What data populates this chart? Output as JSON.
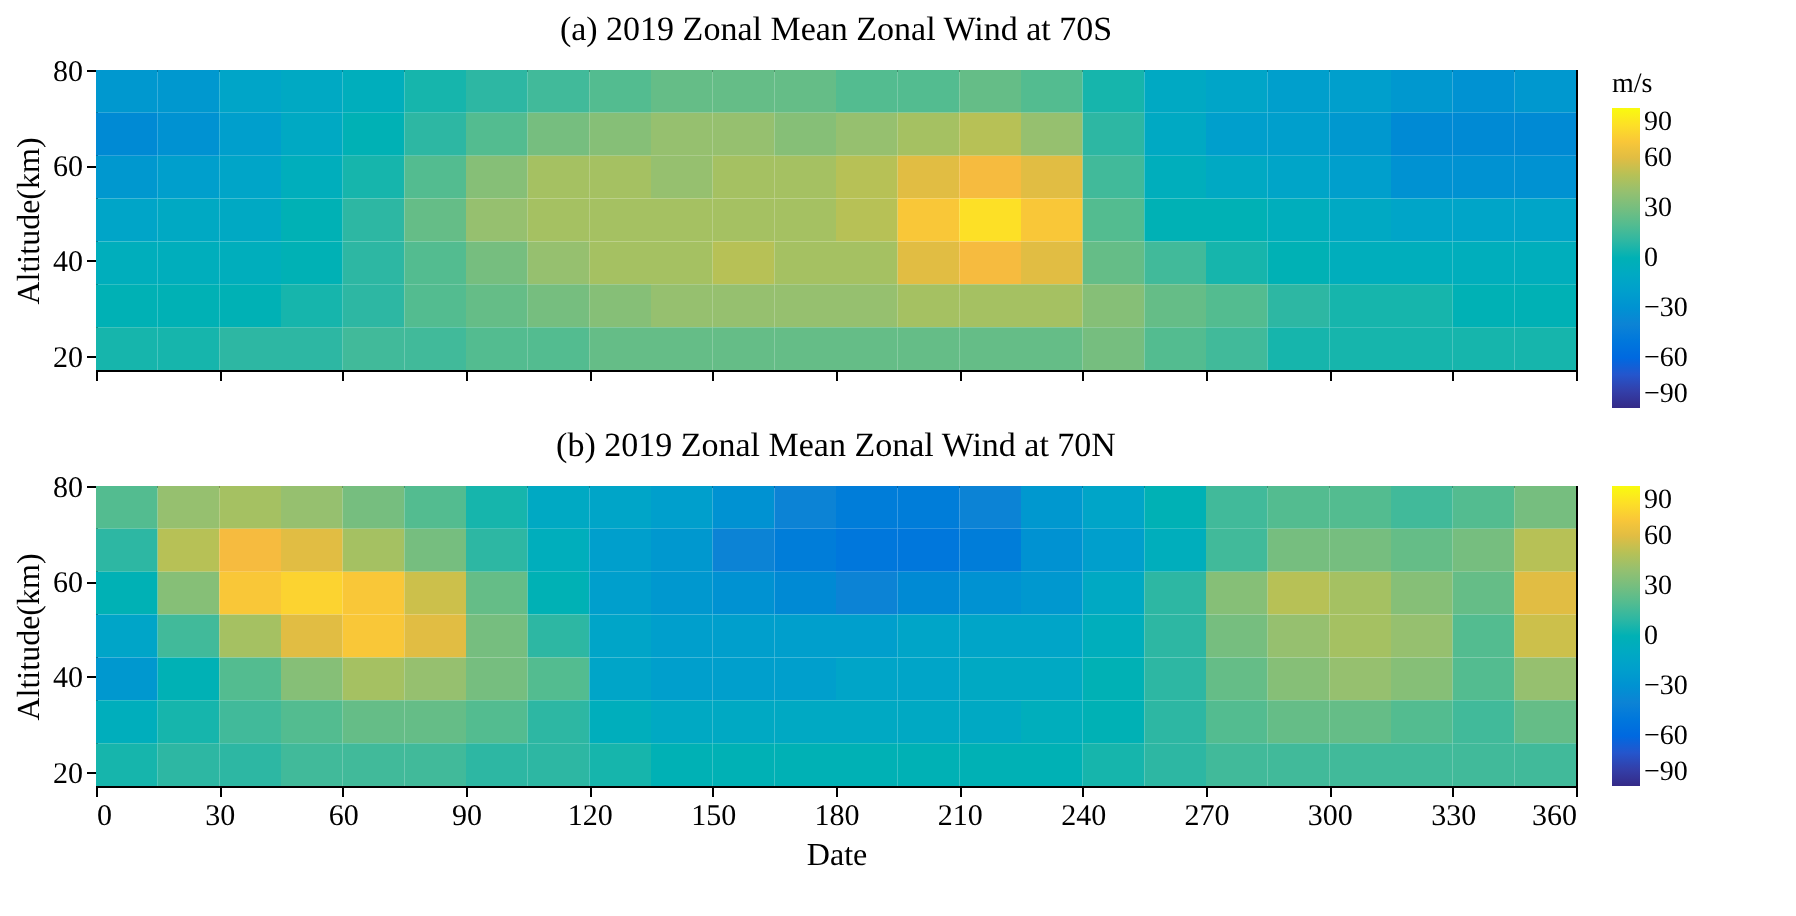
{
  "chart_data": [
    {
      "type": "heatmap",
      "title": "(a) 2019 Zonal Mean Zonal Wind at 70S",
      "ylabel": "Altitude(km)",
      "clabel": "m/s",
      "clim": [
        -90,
        90
      ],
      "cticks": [
        -90,
        -60,
        -30,
        0,
        30,
        60,
        90
      ],
      "xlim": [
        0,
        360
      ],
      "ylim": [
        17,
        80
      ],
      "xticks": [
        0,
        30,
        60,
        90,
        120,
        150,
        180,
        210,
        240,
        270,
        300,
        330,
        360
      ],
      "yticks": [
        20,
        40,
        60,
        80
      ],
      "tick_labels": "y",
      "x": [
        7.5,
        22.5,
        37.5,
        52.5,
        67.5,
        82.5,
        97.5,
        112.5,
        127.5,
        142.5,
        157.5,
        172.5,
        187.5,
        202.5,
        217.5,
        232.5,
        247.5,
        262.5,
        277.5,
        292.5,
        307.5,
        322.5,
        337.5,
        352.5
      ],
      "y": [
        75.5,
        66.5,
        57.5,
        48.5,
        39.5,
        30.5,
        21.5
      ],
      "cells": [
        [
          -25,
          -25,
          -15,
          -10,
          -5,
          5,
          10,
          15,
          20,
          25,
          25,
          25,
          20,
          20,
          25,
          20,
          5,
          -10,
          -15,
          -20,
          -20,
          -25,
          -30,
          -25
        ],
        [
          -35,
          -30,
          -20,
          -10,
          0,
          10,
          20,
          30,
          35,
          40,
          40,
          35,
          40,
          45,
          50,
          40,
          10,
          -10,
          -20,
          -20,
          -25,
          -35,
          -35,
          -35
        ],
        [
          -25,
          -20,
          -15,
          -5,
          5,
          20,
          35,
          45,
          45,
          40,
          45,
          45,
          50,
          60,
          65,
          60,
          15,
          -5,
          -10,
          -15,
          -20,
          -30,
          -30,
          -30
        ],
        [
          -15,
          -10,
          -10,
          0,
          10,
          25,
          40,
          45,
          45,
          45,
          45,
          45,
          50,
          70,
          80,
          70,
          20,
          0,
          0,
          -5,
          -10,
          -15,
          -15,
          -15
        ],
        [
          -5,
          -5,
          -5,
          0,
          10,
          20,
          30,
          40,
          45,
          45,
          50,
          45,
          45,
          60,
          65,
          60,
          25,
          15,
          5,
          0,
          -5,
          -5,
          -5,
          -5
        ],
        [
          0,
          0,
          0,
          5,
          10,
          20,
          25,
          30,
          35,
          40,
          40,
          40,
          40,
          45,
          45,
          45,
          35,
          25,
          20,
          10,
          5,
          5,
          0,
          0
        ],
        [
          5,
          5,
          10,
          10,
          15,
          15,
          20,
          20,
          25,
          25,
          25,
          25,
          25,
          25,
          25,
          25,
          30,
          20,
          15,
          5,
          5,
          5,
          5,
          5
        ]
      ]
    },
    {
      "type": "heatmap",
      "title": "(b) 2019 Zonal Mean Zonal Wind at 70N",
      "xlabel": "Date",
      "clim": [
        -90,
        90
      ],
      "cticks": [
        -90,
        -60,
        -30,
        0,
        30,
        60,
        90
      ],
      "ylabel": "Altitude(km)",
      "xlim": [
        0,
        360
      ],
      "ylim": [
        17,
        80
      ],
      "xticks": [
        0,
        30,
        60,
        90,
        120,
        150,
        180,
        210,
        240,
        270,
        300,
        330,
        360
      ],
      "yticks": [
        20,
        40,
        60,
        80
      ],
      "x": [
        7.5,
        22.5,
        37.5,
        52.5,
        67.5,
        82.5,
        97.5,
        112.5,
        127.5,
        142.5,
        157.5,
        172.5,
        187.5,
        202.5,
        217.5,
        232.5,
        247.5,
        262.5,
        277.5,
        292.5,
        307.5,
        322.5,
        337.5,
        352.5
      ],
      "y": [
        75.5,
        66.5,
        57.5,
        48.5,
        39.5,
        30.5,
        21.5
      ],
      "cells": [
        [
          20,
          40,
          45,
          40,
          30,
          20,
          5,
          -10,
          -15,
          -20,
          -30,
          -40,
          -45,
          -45,
          -40,
          -25,
          -15,
          0,
          15,
          20,
          20,
          15,
          20,
          30
        ],
        [
          10,
          50,
          65,
          60,
          45,
          30,
          10,
          -5,
          -20,
          -25,
          -40,
          -45,
          -50,
          -50,
          -45,
          -30,
          -20,
          -5,
          15,
          30,
          30,
          25,
          30,
          50
        ],
        [
          0,
          35,
          70,
          75,
          70,
          55,
          25,
          0,
          -20,
          -25,
          -30,
          -35,
          -40,
          -35,
          -30,
          -25,
          -10,
          10,
          35,
          50,
          45,
          35,
          25,
          60
        ],
        [
          -15,
          15,
          45,
          60,
          70,
          60,
          30,
          10,
          -15,
          -20,
          -20,
          -20,
          -20,
          -15,
          -15,
          -15,
          -5,
          10,
          30,
          40,
          45,
          40,
          20,
          55
        ],
        [
          -25,
          0,
          20,
          35,
          45,
          40,
          30,
          20,
          -15,
          -20,
          -20,
          -20,
          -15,
          -15,
          -10,
          -10,
          0,
          10,
          25,
          35,
          40,
          35,
          20,
          40
        ],
        [
          -5,
          5,
          15,
          20,
          25,
          25,
          20,
          10,
          -5,
          -10,
          -10,
          -10,
          -10,
          -10,
          -10,
          -5,
          0,
          10,
          20,
          25,
          25,
          20,
          15,
          25
        ],
        [
          5,
          10,
          10,
          15,
          15,
          15,
          10,
          10,
          5,
          0,
          0,
          0,
          0,
          0,
          0,
          0,
          5,
          10,
          15,
          15,
          15,
          15,
          15,
          15
        ]
      ]
    }
  ]
}
